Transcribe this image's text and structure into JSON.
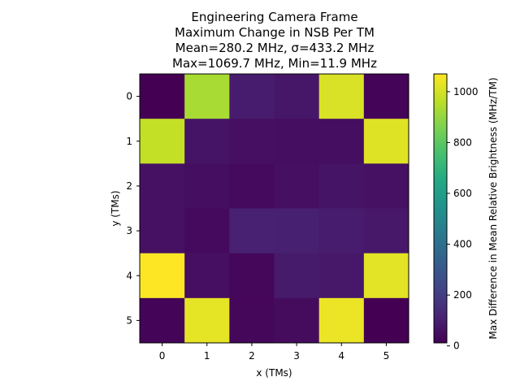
{
  "chart_data": {
    "type": "heatmap",
    "title_lines": [
      "Engineering Camera Frame",
      "Maximum Change in NSB Per TM",
      "Mean=280.2 MHz, σ=433.2 MHz",
      "Max=1069.7 MHz, Min=11.9 MHz"
    ],
    "xlabel": "x (TMs)",
    "ylabel": "y (TMs)",
    "x_ticks": [
      "0",
      "1",
      "2",
      "3",
      "4",
      "5"
    ],
    "y_ticks": [
      "0",
      "1",
      "2",
      "3",
      "4",
      "5"
    ],
    "colorbar": {
      "label": "Max Difference in Mean Relative Brightness (MHz/TM)",
      "vmin": 11.9,
      "vmax": 1069.7,
      "ticks": [
        0,
        200,
        400,
        600,
        800,
        1000
      ],
      "colormap": "viridis"
    },
    "values": [
      [
        12,
        930,
        95,
        75,
        1010,
        20
      ],
      [
        975,
        70,
        55,
        50,
        50,
        1020
      ],
      [
        60,
        50,
        40,
        55,
        70,
        60
      ],
      [
        60,
        40,
        110,
        105,
        95,
        80
      ],
      [
        1069.7,
        55,
        30,
        90,
        80,
        1025
      ],
      [
        25,
        1030,
        30,
        45,
        1040,
        11.9
      ]
    ],
    "grid": false
  }
}
